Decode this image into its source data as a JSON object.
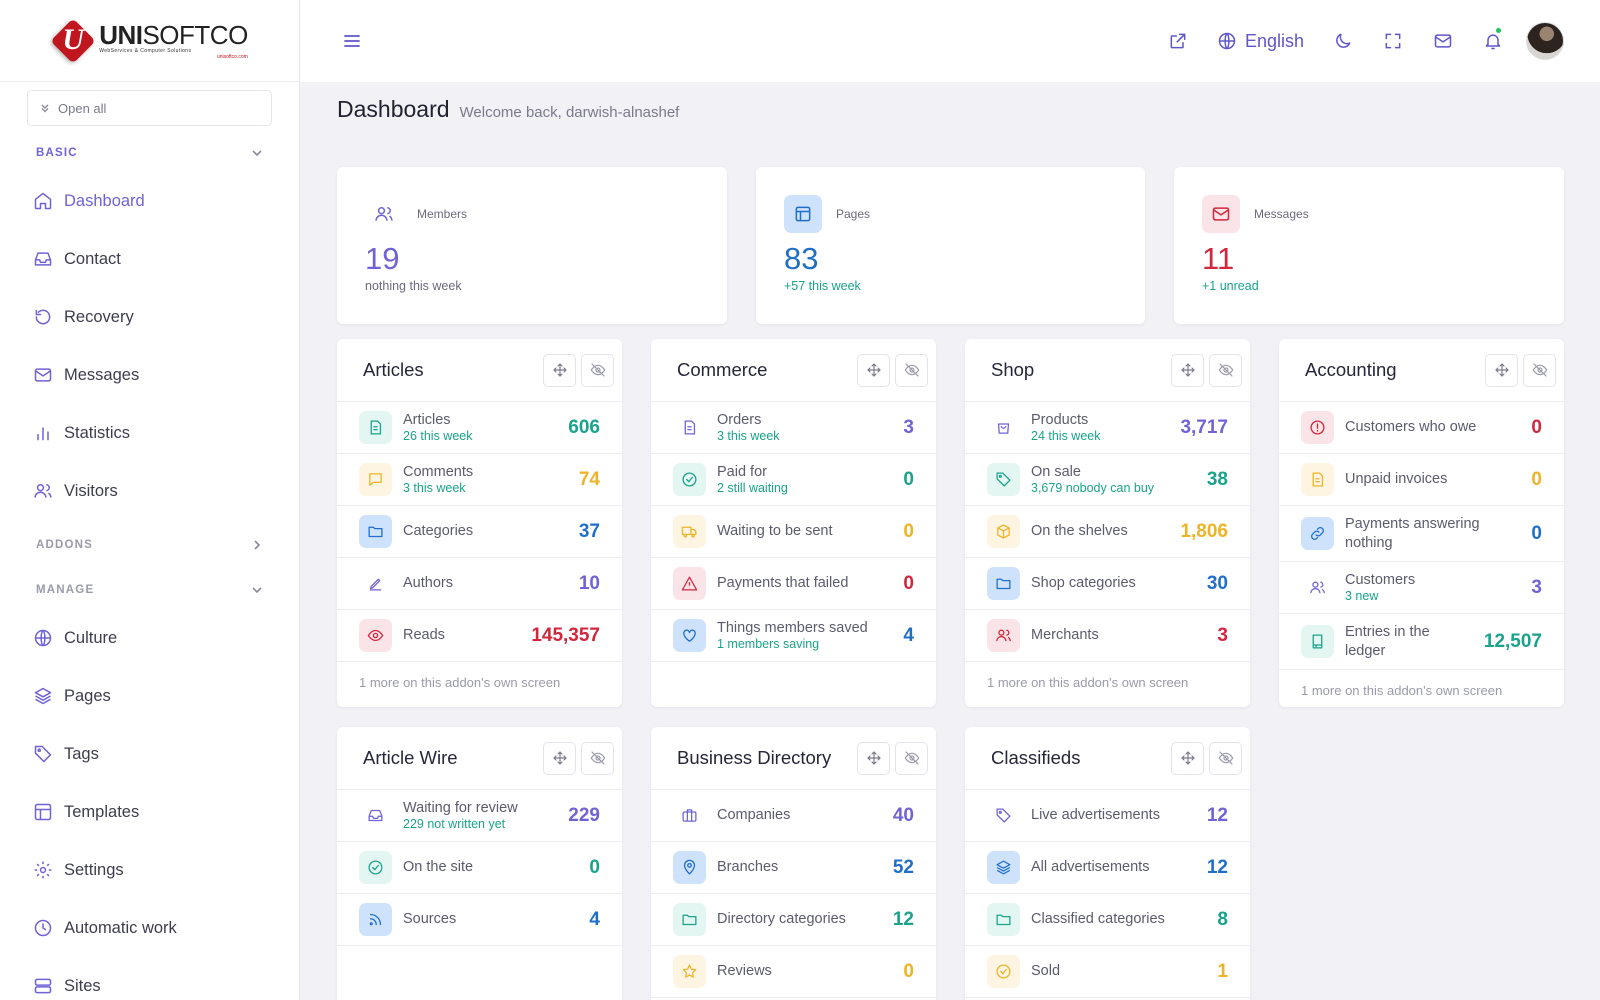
{
  "brand": {
    "mark": "U",
    "name_bold": "UNI",
    "name_light": "SOFTCO",
    "tagline": "WebServices & Computer Solutions",
    "url": "unisoftco.com"
  },
  "sidebar": {
    "open_all": "Open all",
    "sections": {
      "basic": "BASIC",
      "addons": "ADDONS",
      "manage": "MANAGE"
    },
    "basic_items": [
      {
        "label": "Dashboard",
        "icon": "home-icon"
      },
      {
        "label": "Contact",
        "icon": "inbox-icon"
      },
      {
        "label": "Recovery",
        "icon": "history-icon"
      },
      {
        "label": "Messages",
        "icon": "mail-icon"
      },
      {
        "label": "Statistics",
        "icon": "bar-chart-icon"
      },
      {
        "label": "Visitors",
        "icon": "users-icon"
      }
    ],
    "manage_items": [
      {
        "label": "Culture",
        "icon": "globe-icon"
      },
      {
        "label": "Pages",
        "icon": "layers-icon"
      },
      {
        "label": "Tags",
        "icon": "tag-icon"
      },
      {
        "label": "Templates",
        "icon": "layout-icon"
      },
      {
        "label": "Settings",
        "icon": "gear-icon"
      },
      {
        "label": "Automatic work",
        "icon": "clock-icon"
      },
      {
        "label": "Sites",
        "icon": "server-icon"
      }
    ]
  },
  "topbar": {
    "language": "English",
    "notification_dot": true
  },
  "page": {
    "title": "Dashboard",
    "welcome": "Welcome back, darwish-alnashef"
  },
  "stats": [
    {
      "label": "Members",
      "value": "19",
      "sub": "nothing this week",
      "color": "#6f63d6"
    },
    {
      "label": "Pages",
      "value": "83",
      "sub": "+57 this week",
      "color": "#1f6fc9"
    },
    {
      "label": "Messages",
      "value": "11",
      "sub": "+1 unread",
      "color": "#d2263d"
    }
  ],
  "cards": {
    "articles": {
      "title": "Articles",
      "rows": [
        {
          "label": "Articles",
          "sub": "26 this week",
          "value": "606"
        },
        {
          "label": "Comments",
          "sub": "3 this week",
          "value": "74"
        },
        {
          "label": "Categories",
          "value": "37"
        },
        {
          "label": "Authors",
          "value": "10"
        },
        {
          "label": "Reads",
          "value": "145,357"
        }
      ],
      "footer": "1 more on this addon's own screen"
    },
    "commerce": {
      "title": "Commerce",
      "rows": [
        {
          "label": "Orders",
          "sub": "3 this week",
          "value": "3"
        },
        {
          "label": "Paid for",
          "sub": "2 still waiting",
          "value": "0"
        },
        {
          "label": "Waiting to be sent",
          "value": "0"
        },
        {
          "label": "Payments that failed",
          "value": "0"
        },
        {
          "label": "Things members saved",
          "sub": "1 members saving",
          "value": "4"
        }
      ]
    },
    "shop": {
      "title": "Shop",
      "rows": [
        {
          "label": "Products",
          "sub": "24 this week",
          "value": "3,717"
        },
        {
          "label": "On sale",
          "sub": "3,679 nobody can buy",
          "value": "38"
        },
        {
          "label": "On the shelves",
          "value": "1,806"
        },
        {
          "label": "Shop categories",
          "value": "30"
        },
        {
          "label": "Merchants",
          "value": "3"
        }
      ],
      "footer": "1 more on this addon's own screen"
    },
    "accounting": {
      "title": "Accounting",
      "rows": [
        {
          "label": "Customers who owe",
          "value": "0"
        },
        {
          "label": "Unpaid invoices",
          "value": "0"
        },
        {
          "label": "Payments answering nothing",
          "value": "0"
        },
        {
          "label": "Customers",
          "sub": "3 new",
          "value": "3"
        },
        {
          "label": "Entries in the ledger",
          "value": "12,507"
        }
      ],
      "footer": "1 more on this addon's own screen"
    },
    "article_wire": {
      "title": "Article Wire",
      "rows": [
        {
          "label": "Waiting for review",
          "sub": "229 not written yet",
          "value": "229"
        },
        {
          "label": "On the site",
          "value": "0"
        },
        {
          "label": "Sources",
          "value": "4"
        }
      ]
    },
    "business_directory": {
      "title": "Business Directory",
      "rows": [
        {
          "label": "Companies",
          "value": "40"
        },
        {
          "label": "Branches",
          "value": "52"
        },
        {
          "label": "Directory categories",
          "value": "12"
        },
        {
          "label": "Reviews",
          "value": "0"
        }
      ]
    },
    "classifieds": {
      "title": "Classifieds",
      "rows": [
        {
          "label": "Live advertisements",
          "value": "12"
        },
        {
          "label": "All advertisements",
          "value": "12"
        },
        {
          "label": "Classified categories",
          "value": "8"
        },
        {
          "label": "Sold",
          "value": "1"
        }
      ]
    }
  }
}
